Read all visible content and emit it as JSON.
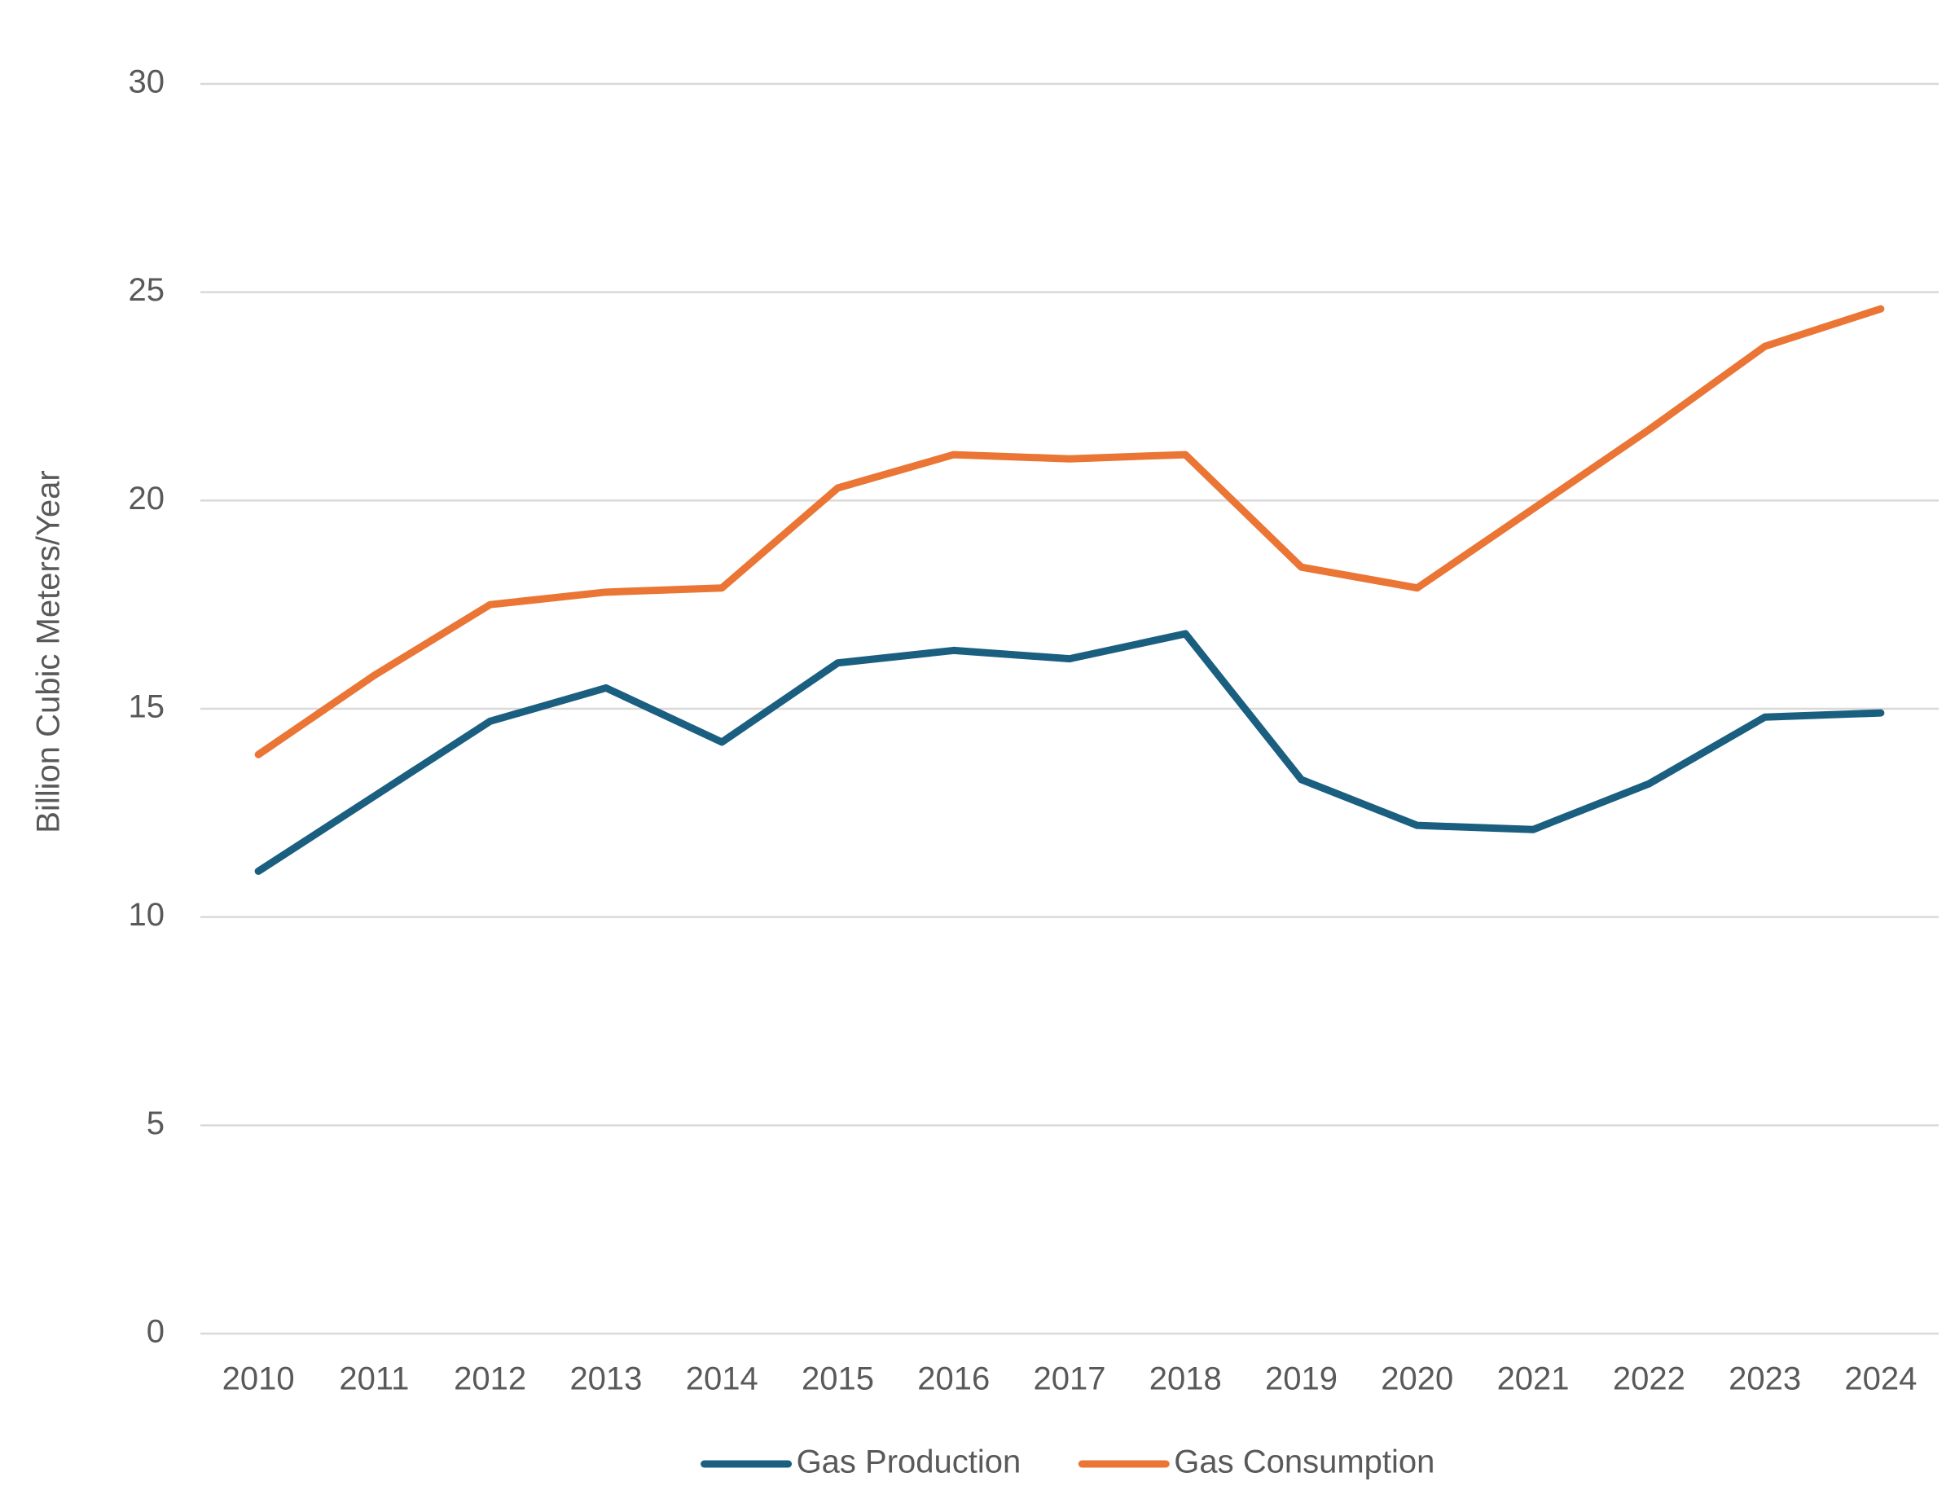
{
  "chart_data": {
    "type": "line",
    "y_label": "Billion Cubic Meters/Year",
    "categories": [
      "2010",
      "2011",
      "2012",
      "2013",
      "2014",
      "2015",
      "2016",
      "2017",
      "2018",
      "2019",
      "2020",
      "2021",
      "2022",
      "2023",
      "2024"
    ],
    "series": [
      {
        "name": "Gas Production",
        "color": "#1b5f80",
        "values": [
          11.1,
          12.9,
          14.7,
          15.5,
          14.2,
          16.1,
          16.4,
          16.2,
          16.8,
          13.3,
          12.2,
          12.1,
          13.2,
          14.8,
          14.9
        ]
      },
      {
        "name": "Gas Consumption",
        "color": "#ea7535",
        "values": [
          13.9,
          15.8,
          17.5,
          17.8,
          17.9,
          20.3,
          21.1,
          21.0,
          21.1,
          18.4,
          17.9,
          19.8,
          21.7,
          23.7,
          24.6
        ]
      }
    ],
    "ylim": [
      0,
      30
    ],
    "yticks": [
      0,
      5,
      10,
      15,
      20,
      25,
      30
    ],
    "grid": true,
    "legend": "bottom"
  }
}
